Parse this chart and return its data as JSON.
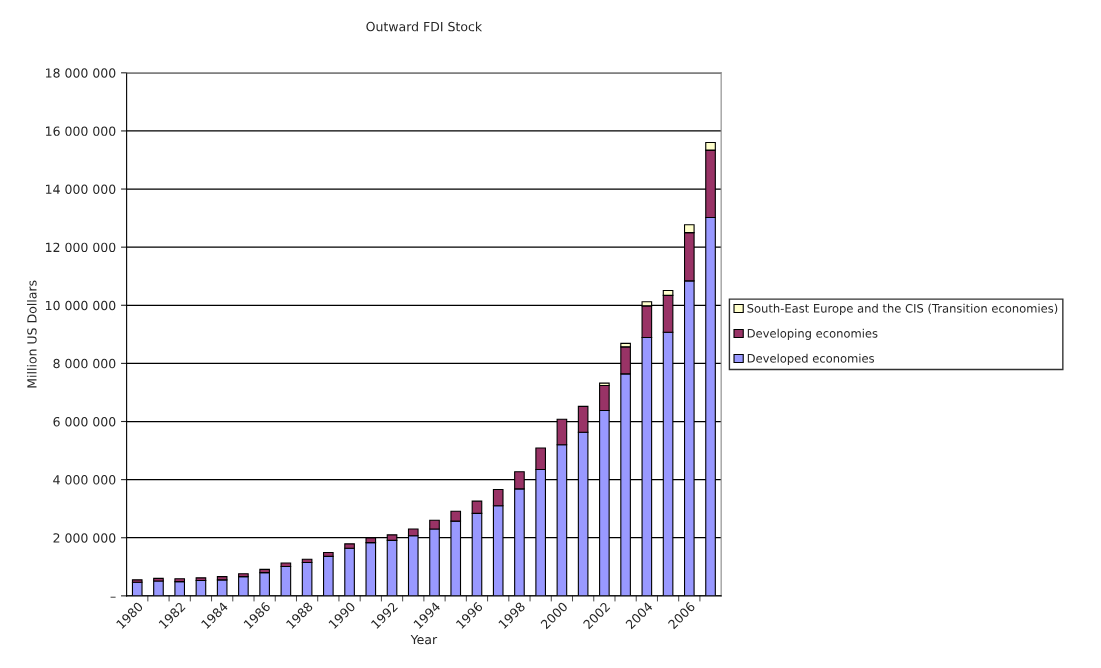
{
  "chart_data": {
    "type": "bar",
    "title": "Outward FDI Stock",
    "xlabel": "Year",
    "ylabel": "Million US Dollars",
    "categories": [
      "1980",
      null,
      "1982",
      null,
      "1984",
      null,
      "1986",
      null,
      "1988",
      null,
      "1990",
      null,
      "1992",
      null,
      "1994",
      null,
      "1996",
      null,
      "1998",
      null,
      "2000",
      null,
      "2002",
      null,
      "2004",
      null,
      "2006",
      null
    ],
    "stacked": true,
    "series": [
      {
        "name": "Developed economies",
        "color": "#9999ff",
        "values": [
          470000,
          510000,
          490000,
          530000,
          550000,
          660000,
          800000,
          1010000,
          1150000,
          1360000,
          1640000,
          1830000,
          1910000,
          2070000,
          2300000,
          2570000,
          2840000,
          3100000,
          3680000,
          4350000,
          5200000,
          5630000,
          6380000,
          7640000,
          8890000,
          9070000,
          10840000,
          13020000
        ]
      },
      {
        "name": "Developing economies",
        "color": "#993366",
        "values": [
          80000,
          90000,
          100000,
          90000,
          110000,
          100000,
          110000,
          120000,
          110000,
          130000,
          150000,
          160000,
          190000,
          230000,
          300000,
          340000,
          420000,
          560000,
          590000,
          740000,
          880000,
          890000,
          860000,
          930000,
          1090000,
          1270000,
          1660000,
          2320000
        ]
      },
      {
        "name": "South-East Europe and the CIS (Transition economies)",
        "color": "#ffffcc",
        "values": [
          null,
          null,
          null,
          null,
          null,
          null,
          null,
          null,
          null,
          null,
          null,
          null,
          null,
          null,
          null,
          null,
          null,
          null,
          null,
          null,
          null,
          null,
          80000,
          120000,
          140000,
          170000,
          270000,
          260000
        ]
      }
    ],
    "ylim": [
      0,
      18000000
    ],
    "yticks": [
      {
        "value": 0,
        "label": "–"
      },
      {
        "value": 2000000,
        "label": "2 000 000"
      },
      {
        "value": 4000000,
        "label": "4 000 000"
      },
      {
        "value": 6000000,
        "label": "6 000 000"
      },
      {
        "value": 8000000,
        "label": "8 000 000"
      },
      {
        "value": 10000000,
        "label": "10 000 000"
      },
      {
        "value": 12000000,
        "label": "12 000 000"
      },
      {
        "value": 14000000,
        "label": "14 000 000"
      },
      {
        "value": 16000000,
        "label": "16 000 000"
      },
      {
        "value": 18000000,
        "label": "18 000 000"
      }
    ],
    "grid": "y",
    "legend": "right"
  }
}
